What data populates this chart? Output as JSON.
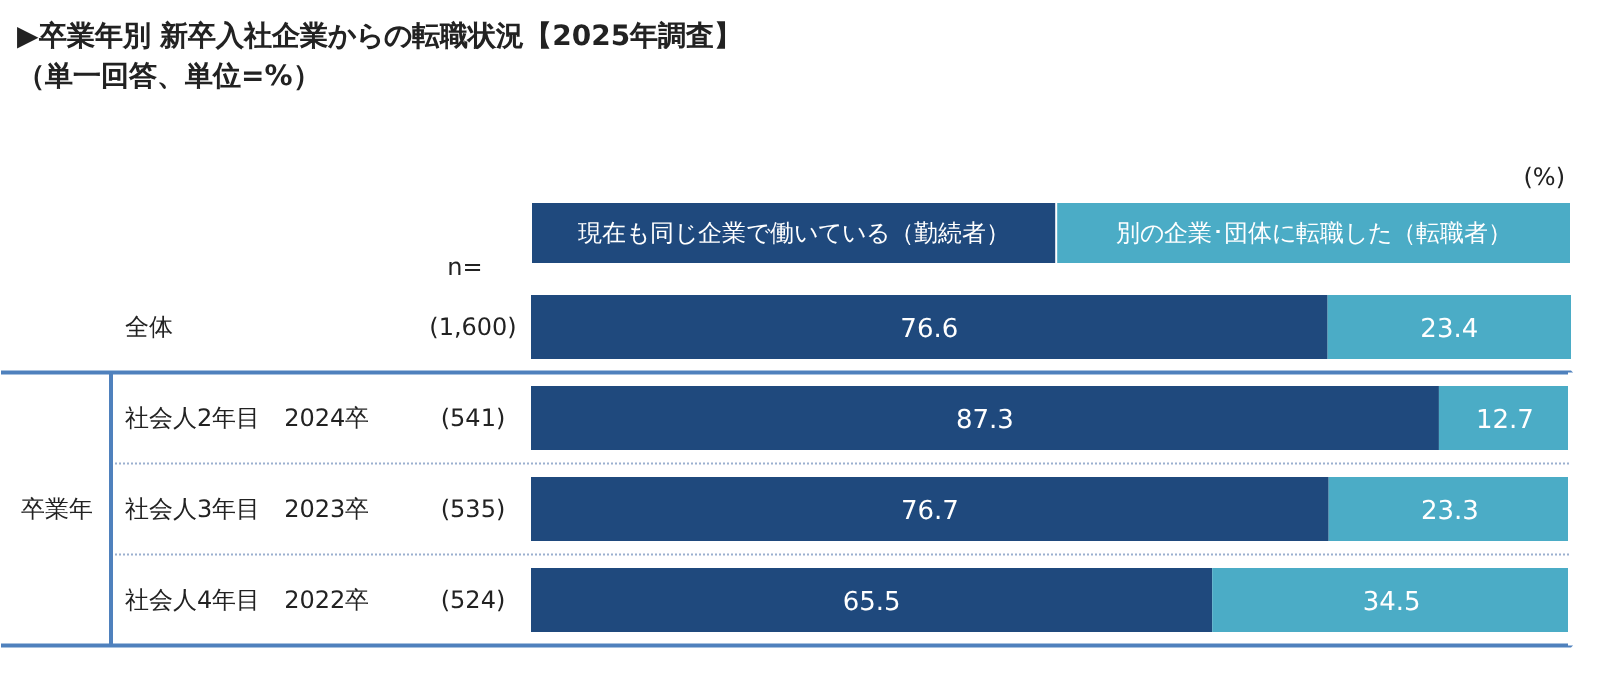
{
  "chart_data": {
    "type": "bar",
    "orientation": "horizontal",
    "stacked": true,
    "title": "▶卒業年別 新卒入社企業からの転職状況【2025年調査】",
    "subtitle": "（単一回答、単位=%）",
    "categories": [
      "全体",
      "社会人2年目　2024卒",
      "社会人3年目　2023卒",
      "社会人4年目　2022卒"
    ],
    "series": [
      {
        "name": "現在も同じ企業で働いている（勤続者）",
        "color": "#1f497d",
        "values": [
          76.6,
          87.3,
          76.7,
          65.5
        ]
      },
      {
        "name": "別の企業･団体に転職した（転職者）",
        "color": "#4bacc6",
        "values": [
          23.4,
          12.7,
          23.3,
          34.5
        ]
      }
    ],
    "data_labels": true,
    "legend": "top",
    "annotations": [
      "n=",
      "(%)",
      "卒業年",
      "(1,600)",
      "(541)",
      "(535)",
      "(524)"
    ]
  }
}
